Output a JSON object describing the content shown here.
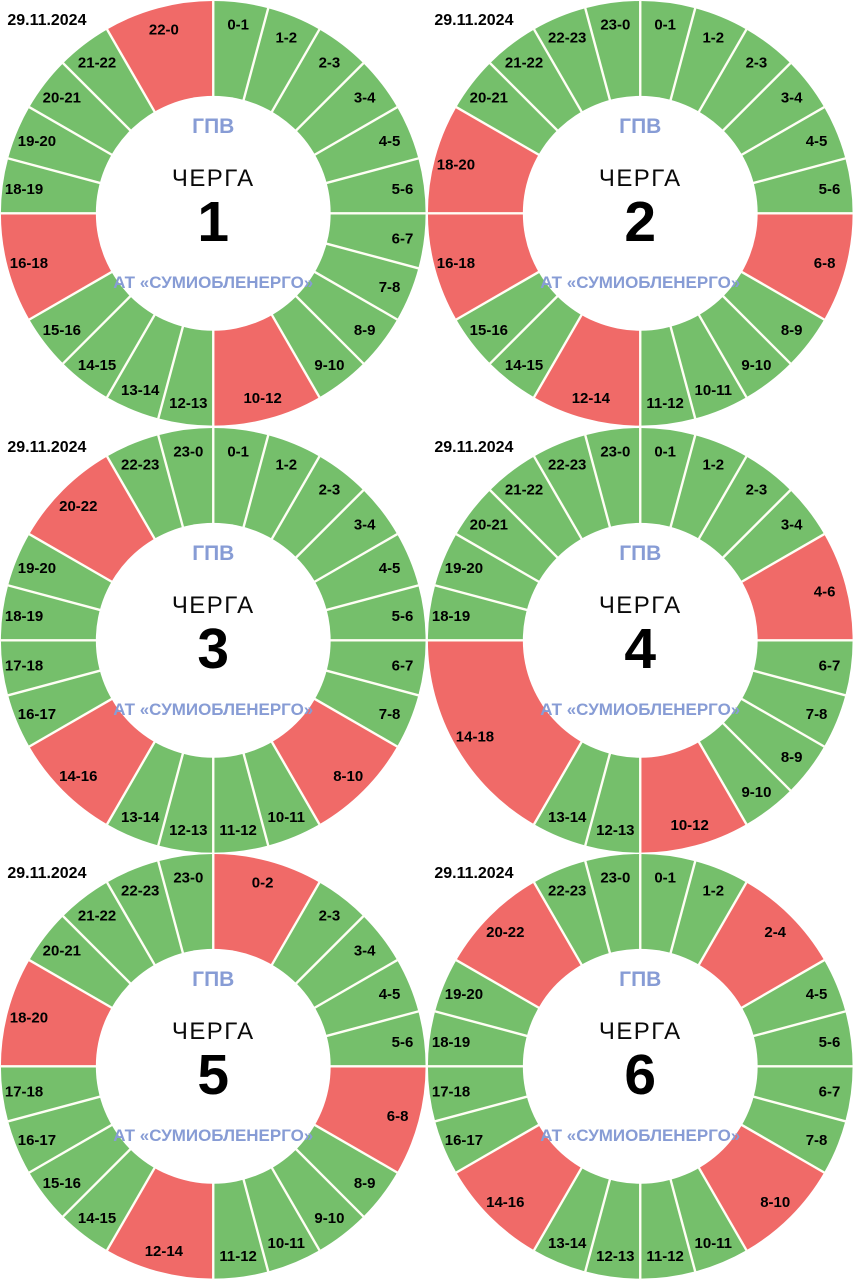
{
  "page": {
    "background": "#ffffff"
  },
  "colors": {
    "on": "#75BF6B",
    "off": "#F06A68",
    "divider": "#FFFEF5",
    "text": "#000000",
    "brand_blue": "#879CD5"
  },
  "chart_data": [
    {
      "type": "pie",
      "variant": "24h-donut-outage-schedule",
      "date": "29.11.2024",
      "hours_total": 24,
      "start_at_top": true,
      "clockwise": true,
      "center": {
        "header": "ГПВ",
        "title": "ЧЕРГА",
        "queue": "1",
        "footer": "АТ «СУМИОБЛЕНЕРГО»"
      },
      "segments": [
        {
          "label": "0-1",
          "from": 0,
          "to": 1,
          "state": "on"
        },
        {
          "label": "1-2",
          "from": 1,
          "to": 2,
          "state": "on"
        },
        {
          "label": "2-3",
          "from": 2,
          "to": 3,
          "state": "on"
        },
        {
          "label": "3-4",
          "from": 3,
          "to": 4,
          "state": "on"
        },
        {
          "label": "4-5",
          "from": 4,
          "to": 5,
          "state": "on"
        },
        {
          "label": "5-6",
          "from": 5,
          "to": 6,
          "state": "on"
        },
        {
          "label": "6-7",
          "from": 6,
          "to": 7,
          "state": "on"
        },
        {
          "label": "7-8",
          "from": 7,
          "to": 8,
          "state": "on"
        },
        {
          "label": "8-9",
          "from": 8,
          "to": 9,
          "state": "on"
        },
        {
          "label": "9-10",
          "from": 9,
          "to": 10,
          "state": "on"
        },
        {
          "label": "10-12",
          "from": 10,
          "to": 12,
          "state": "off"
        },
        {
          "label": "12-13",
          "from": 12,
          "to": 13,
          "state": "on"
        },
        {
          "label": "13-14",
          "from": 13,
          "to": 14,
          "state": "on"
        },
        {
          "label": "14-15",
          "from": 14,
          "to": 15,
          "state": "on"
        },
        {
          "label": "15-16",
          "from": 15,
          "to": 16,
          "state": "on"
        },
        {
          "label": "16-18",
          "from": 16,
          "to": 18,
          "state": "off"
        },
        {
          "label": "18-19",
          "from": 18,
          "to": 19,
          "state": "on"
        },
        {
          "label": "19-20",
          "from": 19,
          "to": 20,
          "state": "on"
        },
        {
          "label": "20-21",
          "from": 20,
          "to": 21,
          "state": "on"
        },
        {
          "label": "21-22",
          "from": 21,
          "to": 22,
          "state": "on"
        },
        {
          "label": "22-0",
          "from": 22,
          "to": 24,
          "state": "off"
        }
      ]
    },
    {
      "type": "pie",
      "variant": "24h-donut-outage-schedule",
      "date": "29.11.2024",
      "hours_total": 24,
      "start_at_top": true,
      "clockwise": true,
      "center": {
        "header": "ГПВ",
        "title": "ЧЕРГА",
        "queue": "2",
        "footer": "АТ «СУМИОБЛЕНЕРГО»"
      },
      "segments": [
        {
          "label": "0-1",
          "from": 0,
          "to": 1,
          "state": "on"
        },
        {
          "label": "1-2",
          "from": 1,
          "to": 2,
          "state": "on"
        },
        {
          "label": "2-3",
          "from": 2,
          "to": 3,
          "state": "on"
        },
        {
          "label": "3-4",
          "from": 3,
          "to": 4,
          "state": "on"
        },
        {
          "label": "4-5",
          "from": 4,
          "to": 5,
          "state": "on"
        },
        {
          "label": "5-6",
          "from": 5,
          "to": 6,
          "state": "on"
        },
        {
          "label": "6-8",
          "from": 6,
          "to": 8,
          "state": "off"
        },
        {
          "label": "8-9",
          "from": 8,
          "to": 9,
          "state": "on"
        },
        {
          "label": "9-10",
          "from": 9,
          "to": 10,
          "state": "on"
        },
        {
          "label": "10-11",
          "from": 10,
          "to": 11,
          "state": "on"
        },
        {
          "label": "11-12",
          "from": 11,
          "to": 12,
          "state": "on"
        },
        {
          "label": "12-14",
          "from": 12,
          "to": 14,
          "state": "off"
        },
        {
          "label": "14-15",
          "from": 14,
          "to": 15,
          "state": "on"
        },
        {
          "label": "15-16",
          "from": 15,
          "to": 16,
          "state": "on"
        },
        {
          "label": "16-18",
          "from": 16,
          "to": 18,
          "state": "off"
        },
        {
          "label": "18-20",
          "from": 18,
          "to": 20,
          "state": "off"
        },
        {
          "label": "20-21",
          "from": 20,
          "to": 21,
          "state": "on"
        },
        {
          "label": "21-22",
          "from": 21,
          "to": 22,
          "state": "on"
        },
        {
          "label": "22-23",
          "from": 22,
          "to": 23,
          "state": "on"
        },
        {
          "label": "23-0",
          "from": 23,
          "to": 24,
          "state": "on"
        }
      ]
    },
    {
      "type": "pie",
      "variant": "24h-donut-outage-schedule",
      "date": "29.11.2024",
      "hours_total": 24,
      "start_at_top": true,
      "clockwise": true,
      "center": {
        "header": "ГПВ",
        "title": "ЧЕРГА",
        "queue": "3",
        "footer": "АТ «СУМИОБЛЕНЕРГО»"
      },
      "segments": [
        {
          "label": "0-1",
          "from": 0,
          "to": 1,
          "state": "on"
        },
        {
          "label": "1-2",
          "from": 1,
          "to": 2,
          "state": "on"
        },
        {
          "label": "2-3",
          "from": 2,
          "to": 3,
          "state": "on"
        },
        {
          "label": "3-4",
          "from": 3,
          "to": 4,
          "state": "on"
        },
        {
          "label": "4-5",
          "from": 4,
          "to": 5,
          "state": "on"
        },
        {
          "label": "5-6",
          "from": 5,
          "to": 6,
          "state": "on"
        },
        {
          "label": "6-7",
          "from": 6,
          "to": 7,
          "state": "on"
        },
        {
          "label": "7-8",
          "from": 7,
          "to": 8,
          "state": "on"
        },
        {
          "label": "8-10",
          "from": 8,
          "to": 10,
          "state": "off"
        },
        {
          "label": "10-11",
          "from": 10,
          "to": 11,
          "state": "on"
        },
        {
          "label": "11-12",
          "from": 11,
          "to": 12,
          "state": "on"
        },
        {
          "label": "12-13",
          "from": 12,
          "to": 13,
          "state": "on"
        },
        {
          "label": "13-14",
          "from": 13,
          "to": 14,
          "state": "on"
        },
        {
          "label": "14-16",
          "from": 14,
          "to": 16,
          "state": "off"
        },
        {
          "label": "16-17",
          "from": 16,
          "to": 17,
          "state": "on"
        },
        {
          "label": "17-18",
          "from": 17,
          "to": 18,
          "state": "on"
        },
        {
          "label": "18-19",
          "from": 18,
          "to": 19,
          "state": "on"
        },
        {
          "label": "19-20",
          "from": 19,
          "to": 20,
          "state": "on"
        },
        {
          "label": "20-22",
          "from": 20,
          "to": 22,
          "state": "off"
        },
        {
          "label": "22-23",
          "from": 22,
          "to": 23,
          "state": "on"
        },
        {
          "label": "23-0",
          "from": 23,
          "to": 24,
          "state": "on"
        }
      ]
    },
    {
      "type": "pie",
      "variant": "24h-donut-outage-schedule",
      "date": "29.11.2024",
      "hours_total": 24,
      "start_at_top": true,
      "clockwise": true,
      "center": {
        "header": "ГПВ",
        "title": "ЧЕРГА",
        "queue": "4",
        "footer": "АТ «СУМИОБЛЕНЕРГО»"
      },
      "segments": [
        {
          "label": "0-1",
          "from": 0,
          "to": 1,
          "state": "on"
        },
        {
          "label": "1-2",
          "from": 1,
          "to": 2,
          "state": "on"
        },
        {
          "label": "2-3",
          "from": 2,
          "to": 3,
          "state": "on"
        },
        {
          "label": "3-4",
          "from": 3,
          "to": 4,
          "state": "on"
        },
        {
          "label": "4-6",
          "from": 4,
          "to": 6,
          "state": "off"
        },
        {
          "label": "6-7",
          "from": 6,
          "to": 7,
          "state": "on"
        },
        {
          "label": "7-8",
          "from": 7,
          "to": 8,
          "state": "on"
        },
        {
          "label": "8-9",
          "from": 8,
          "to": 9,
          "state": "on"
        },
        {
          "label": "9-10",
          "from": 9,
          "to": 10,
          "state": "on"
        },
        {
          "label": "10-12",
          "from": 10,
          "to": 12,
          "state": "off"
        },
        {
          "label": "12-13",
          "from": 12,
          "to": 13,
          "state": "on"
        },
        {
          "label": "13-14",
          "from": 13,
          "to": 14,
          "state": "on"
        },
        {
          "label": "14-18",
          "from": 14,
          "to": 18,
          "state": "off"
        },
        {
          "label": "18-19",
          "from": 18,
          "to": 19,
          "state": "on"
        },
        {
          "label": "19-20",
          "from": 19,
          "to": 20,
          "state": "on"
        },
        {
          "label": "20-21",
          "from": 20,
          "to": 21,
          "state": "on"
        },
        {
          "label": "21-22",
          "from": 21,
          "to": 22,
          "state": "on"
        },
        {
          "label": "22-23",
          "from": 22,
          "to": 23,
          "state": "on"
        },
        {
          "label": "23-0",
          "from": 23,
          "to": 24,
          "state": "on"
        }
      ]
    },
    {
      "type": "pie",
      "variant": "24h-donut-outage-schedule",
      "date": "29.11.2024",
      "hours_total": 24,
      "start_at_top": true,
      "clockwise": true,
      "center": {
        "header": "ГПВ",
        "title": "ЧЕРГА",
        "queue": "5",
        "footer": "АТ «СУМИОБЛЕНЕРГО»"
      },
      "segments": [
        {
          "label": "0-2",
          "from": 0,
          "to": 2,
          "state": "off"
        },
        {
          "label": "2-3",
          "from": 2,
          "to": 3,
          "state": "on"
        },
        {
          "label": "3-4",
          "from": 3,
          "to": 4,
          "state": "on"
        },
        {
          "label": "4-5",
          "from": 4,
          "to": 5,
          "state": "on"
        },
        {
          "label": "5-6",
          "from": 5,
          "to": 6,
          "state": "on"
        },
        {
          "label": "6-8",
          "from": 6,
          "to": 8,
          "state": "off"
        },
        {
          "label": "8-9",
          "from": 8,
          "to": 9,
          "state": "on"
        },
        {
          "label": "9-10",
          "from": 9,
          "to": 10,
          "state": "on"
        },
        {
          "label": "10-11",
          "from": 10,
          "to": 11,
          "state": "on"
        },
        {
          "label": "11-12",
          "from": 11,
          "to": 12,
          "state": "on"
        },
        {
          "label": "12-14",
          "from": 12,
          "to": 14,
          "state": "off"
        },
        {
          "label": "14-15",
          "from": 14,
          "to": 15,
          "state": "on"
        },
        {
          "label": "15-16",
          "from": 15,
          "to": 16,
          "state": "on"
        },
        {
          "label": "16-17",
          "from": 16,
          "to": 17,
          "state": "on"
        },
        {
          "label": "17-18",
          "from": 17,
          "to": 18,
          "state": "on"
        },
        {
          "label": "18-20",
          "from": 18,
          "to": 20,
          "state": "off"
        },
        {
          "label": "20-21",
          "from": 20,
          "to": 21,
          "state": "on"
        },
        {
          "label": "21-22",
          "from": 21,
          "to": 22,
          "state": "on"
        },
        {
          "label": "22-23",
          "from": 22,
          "to": 23,
          "state": "on"
        },
        {
          "label": "23-0",
          "from": 23,
          "to": 24,
          "state": "on"
        }
      ]
    },
    {
      "type": "pie",
      "variant": "24h-donut-outage-schedule",
      "date": "29.11.2024",
      "hours_total": 24,
      "start_at_top": true,
      "clockwise": true,
      "center": {
        "header": "ГПВ",
        "title": "ЧЕРГА",
        "queue": "6",
        "footer": "АТ «СУМИОБЛЕНЕРГО»"
      },
      "segments": [
        {
          "label": "0-1",
          "from": 0,
          "to": 1,
          "state": "on"
        },
        {
          "label": "1-2",
          "from": 1,
          "to": 2,
          "state": "on"
        },
        {
          "label": "2-4",
          "from": 2,
          "to": 4,
          "state": "off"
        },
        {
          "label": "4-5",
          "from": 4,
          "to": 5,
          "state": "on"
        },
        {
          "label": "5-6",
          "from": 5,
          "to": 6,
          "state": "on"
        },
        {
          "label": "6-7",
          "from": 6,
          "to": 7,
          "state": "on"
        },
        {
          "label": "7-8",
          "from": 7,
          "to": 8,
          "state": "on"
        },
        {
          "label": "8-10",
          "from": 8,
          "to": 10,
          "state": "off"
        },
        {
          "label": "10-11",
          "from": 10,
          "to": 11,
          "state": "on"
        },
        {
          "label": "11-12",
          "from": 11,
          "to": 12,
          "state": "on"
        },
        {
          "label": "12-13",
          "from": 12,
          "to": 13,
          "state": "on"
        },
        {
          "label": "13-14",
          "from": 13,
          "to": 14,
          "state": "on"
        },
        {
          "label": "14-16",
          "from": 14,
          "to": 16,
          "state": "off"
        },
        {
          "label": "16-17",
          "from": 16,
          "to": 17,
          "state": "on"
        },
        {
          "label": "17-18",
          "from": 17,
          "to": 18,
          "state": "on"
        },
        {
          "label": "18-19",
          "from": 18,
          "to": 19,
          "state": "on"
        },
        {
          "label": "19-20",
          "from": 19,
          "to": 20,
          "state": "on"
        },
        {
          "label": "20-22",
          "from": 20,
          "to": 22,
          "state": "off"
        },
        {
          "label": "22-23",
          "from": 22,
          "to": 23,
          "state": "on"
        },
        {
          "label": "23-0",
          "from": 23,
          "to": 24,
          "state": "on"
        }
      ]
    }
  ]
}
